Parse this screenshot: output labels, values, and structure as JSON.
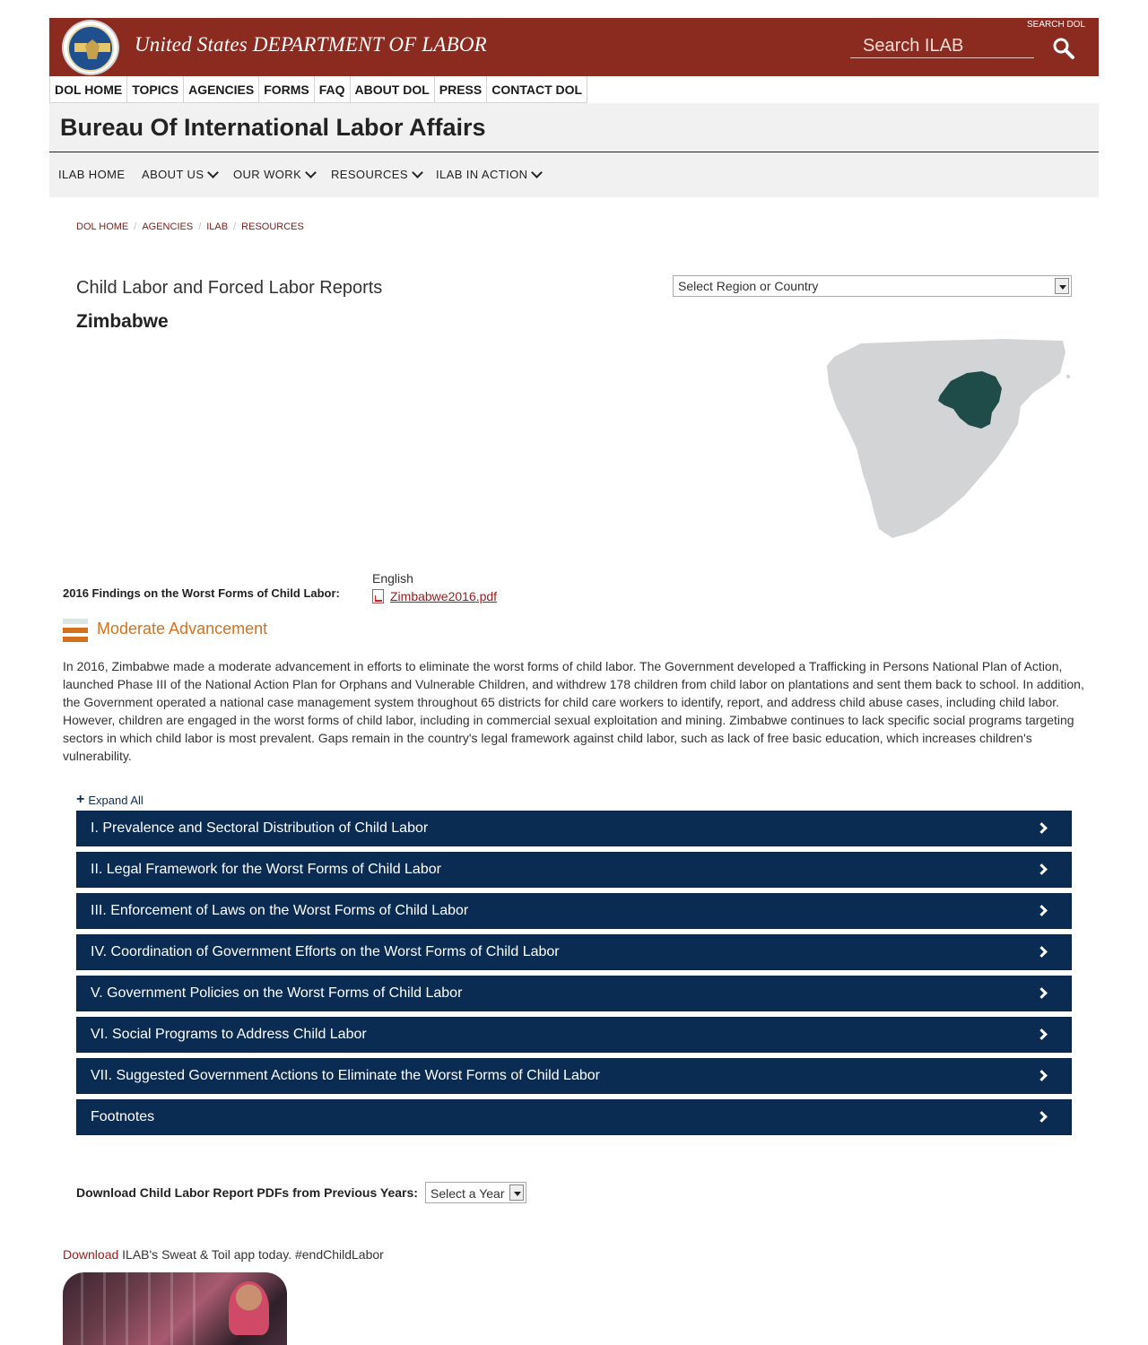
{
  "header": {
    "agency_title": "United States DEPARTMENT OF LABOR",
    "search_dol_label": "SEARCH DOL",
    "search_placeholder": "Search ILAB",
    "brand_color": "#8b2a1f"
  },
  "top_nav": [
    {
      "label": "DOL HOME"
    },
    {
      "label": "TOPICS"
    },
    {
      "label": "AGENCIES"
    },
    {
      "label": "FORMS"
    },
    {
      "label": "FAQ"
    },
    {
      "label": "ABOUT DOL"
    },
    {
      "label": "PRESS"
    },
    {
      "label": "CONTACT DOL"
    }
  ],
  "bureau": {
    "title": "Bureau Of International Labor Affairs"
  },
  "sub_nav": [
    {
      "label": "ILAB HOME",
      "has_dropdown": false
    },
    {
      "label": "ABOUT US",
      "has_dropdown": true
    },
    {
      "label": "OUR WORK",
      "has_dropdown": true
    },
    {
      "label": "RESOURCES",
      "has_dropdown": true
    },
    {
      "label": "ILAB IN ACTION",
      "has_dropdown": true
    }
  ],
  "breadcrumb": [
    "DOL HOME",
    "AGENCIES",
    "ILAB",
    "RESOURCES"
  ],
  "page": {
    "title": "Child Labor and Forced Labor Reports",
    "country": "Zimbabwe",
    "region_select": "Select Region or Country"
  },
  "findings": {
    "label": "2016 Findings on the Worst Forms of Child Labor:",
    "language": "English",
    "pdf_name": "Zimbabwe2016.pdf",
    "assessment": "Moderate Advancement",
    "assessment_color": "#d4711e",
    "summary": "In 2016, Zimbabwe made a moderate advancement in efforts to eliminate the worst forms of child labor. The Government developed a Trafficking in Persons National Plan of Action, launched Phase III of the National Action Plan for Orphans and Vulnerable Children, and withdrew 178 children from child labor on plantations and sent them back to school. In addition, the Government operated a national case management system throughout 65 districts for child care workers to identify, report, and address child abuse cases, including child labor. However, children are engaged in the worst forms of child labor, including in commercial sexual exploitation and mining. Zimbabwe continues to lack specific social programs targeting sectors in which child labor is most prevalent. Gaps remain in the country's legal framework against child labor, such as lack of free basic education, which increases children's vulnerability."
  },
  "accordion": {
    "expand_all": "Expand All",
    "sections": [
      {
        "title": "I. Prevalence and Sectoral Distribution of Child Labor"
      },
      {
        "title": "II. Legal Framework for the Worst Forms of Child Labor"
      },
      {
        "title": "III. Enforcement of Laws on the Worst Forms of Child Labor"
      },
      {
        "title": "IV. Coordination of Government Efforts on the Worst Forms of Child Labor"
      },
      {
        "title": "V. Government Policies on the Worst Forms of Child Labor"
      },
      {
        "title": "VI. Social Programs to Address Child Labor"
      },
      {
        "title": "VII. Suggested Government Actions to Eliminate the Worst Forms of Child Labor"
      },
      {
        "title": "Footnotes"
      }
    ]
  },
  "previous_years": {
    "label": "Download Child Labor Report PDFs from Previous Years:",
    "select": "Select a Year"
  },
  "app_promo": {
    "link": "Download",
    "text": " ILAB's Sweat & Toil app today. #endChildLabor"
  }
}
